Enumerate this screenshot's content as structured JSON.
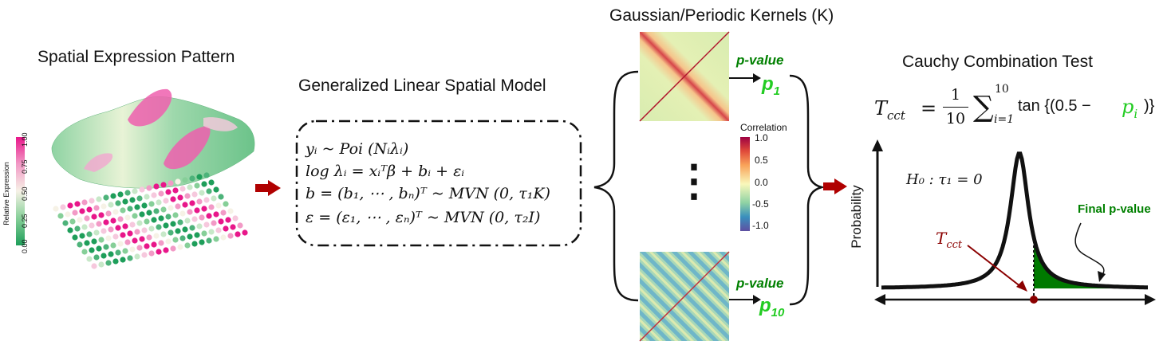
{
  "panel1": {
    "title": "Spatial Expression Pattern",
    "legend_title": "Relative Expression",
    "legend_ticks": [
      "1.00",
      "0.75",
      "0.50",
      "0.25",
      "0.00"
    ]
  },
  "panel2": {
    "title": "Generalized Linear Spatial Model",
    "equations": [
      "yᵢ ~ Poi (Nᵢλᵢ)",
      "log λᵢ = xᵢᵀβ + bᵢ + εᵢ",
      "b = (b₁, ⋯ , bₙ)ᵀ ~ MVN (0, τ₁K)",
      "ε = (ε₁, ⋯ , εₙ)ᵀ ~ MVN (0, τ₂I)"
    ]
  },
  "panel3": {
    "title": "Gaussian/Periodic Kernels (K)",
    "pvalue_label_top": "p-value",
    "p_top": "p",
    "p_top_sub": "1",
    "pvalue_label_bottom": "p-value",
    "p_bottom": "p",
    "p_bottom_sub": "10",
    "colorbar_title": "Correlation",
    "colorbar_ticks": [
      "1.0",
      "0.5",
      "0.0",
      "-0.5",
      "-1.0"
    ],
    "ellipsis": "⋮"
  },
  "panel4": {
    "title": "Cauchy Combination Test",
    "formula": {
      "lhs": "T",
      "lhs_sub": "cct",
      "frac_num": "1",
      "frac_den": "10",
      "sum_upper": "10",
      "sum_lower": "i=1",
      "body": "tan {(0.5 −",
      "p": "p",
      "p_sub": "i",
      "close": ")}"
    },
    "hypothesis": "H₀ : τ₁ = 0",
    "y_axis_label": "Probability",
    "final_label": "Final p-value",
    "tcct_label": "T",
    "tcct_sub": "cct"
  },
  "colors": {
    "arrow_red": "#b00000",
    "pvalue_green": "#008000",
    "p_bright_green": "#22cc22",
    "tail_fill": "#007a00",
    "tcct_marker": "#8b0000"
  }
}
